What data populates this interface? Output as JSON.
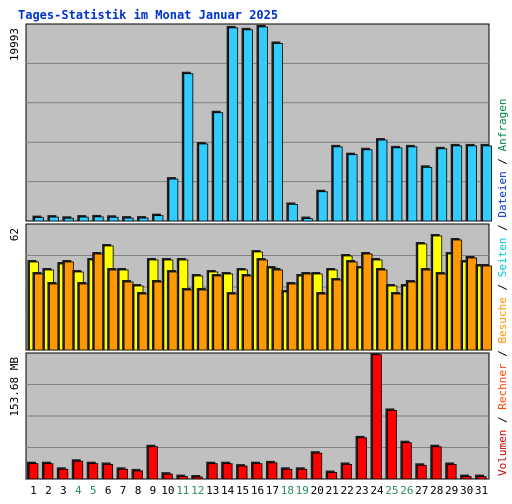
{
  "chart_data": [
    {
      "type": "bar",
      "title": "Tages-Statistik im Monat Januar 2025",
      "ylabel": "19993",
      "categories": [
        "1",
        "2",
        "3",
        "4",
        "5",
        "6",
        "7",
        "8",
        "9",
        "10",
        "11",
        "12",
        "13",
        "14",
        "15",
        "16",
        "17",
        "18",
        "19",
        "20",
        "21",
        "22",
        "23",
        "24",
        "25",
        "26",
        "27",
        "28",
        "29",
        "30",
        "31"
      ],
      "weekend_days": [
        "4",
        "5",
        "11",
        "12",
        "18",
        "19",
        "25",
        "26"
      ],
      "ylim": [
        0,
        19993
      ],
      "grid": true,
      "series": [
        {
          "name": "Anfragen",
          "color": "#00cccc",
          "values": [
            0,
            0,
            0,
            0,
            0,
            0,
            0,
            0,
            0,
            0,
            0,
            0,
            0,
            0,
            0,
            0,
            0,
            0,
            0,
            0,
            0,
            0,
            0,
            0,
            0,
            0,
            0,
            0,
            0,
            0,
            0
          ]
        },
        {
          "name": "Dateien",
          "color": "#33ccff",
          "values": [
            350,
            400,
            280,
            400,
            420,
            380,
            300,
            300,
            550,
            4300,
            15100,
            7900,
            11100,
            19800,
            19600,
            19900,
            18200,
            1700,
            250,
            3000,
            7600,
            6800,
            7300,
            8300,
            7500,
            7600,
            5500,
            7400,
            7700,
            7700,
            7700
          ]
        }
      ]
    },
    {
      "type": "bar",
      "ylabel": "62",
      "ylim": [
        0,
        62
      ],
      "grid": true,
      "series": [
        {
          "name": "Seiten",
          "color": "#ffff00",
          "values": [
            44,
            40,
            43,
            39,
            45,
            52,
            40,
            32,
            45,
            45,
            45,
            37,
            39,
            38,
            40,
            49,
            41,
            29,
            37,
            38,
            40,
            47,
            41,
            45,
            32,
            32,
            53,
            57,
            48,
            44,
            42
          ]
        },
        {
          "name": "Besuche",
          "color": "#ff9900",
          "values": [
            38,
            33,
            44,
            33,
            48,
            40,
            34,
            28,
            34,
            39,
            30,
            30,
            37,
            28,
            37,
            45,
            40,
            33,
            38,
            28,
            35,
            44,
            48,
            40,
            28,
            34,
            40,
            38,
            55,
            46,
            42
          ]
        }
      ]
    },
    {
      "type": "bar",
      "ylabel": "153.68 MB",
      "ylim": [
        0,
        153.68
      ],
      "grid": true,
      "series": [
        {
          "name": "Volumen",
          "color": "#ff0000",
          "values": [
            19,
            19,
            12,
            22,
            19,
            18,
            12,
            10,
            40,
            6,
            3,
            2,
            19,
            19,
            16,
            19,
            20,
            12,
            12,
            32,
            8,
            18,
            51,
            154,
            85,
            45,
            17,
            40,
            18,
            3,
            3
          ]
        }
      ]
    }
  ],
  "legend": [
    {
      "label": "Volumen",
      "color": "#cc0000"
    },
    {
      "label": "Rechner",
      "color": "#ff4400"
    },
    {
      "label": "Besuche",
      "color": "#ff9900"
    },
    {
      "label": "Seiten",
      "color": "#00cccc"
    },
    {
      "label": "Dateien",
      "color": "#0033cc"
    },
    {
      "label": "Anfragen",
      "color": "#008844"
    }
  ],
  "separator": "/"
}
